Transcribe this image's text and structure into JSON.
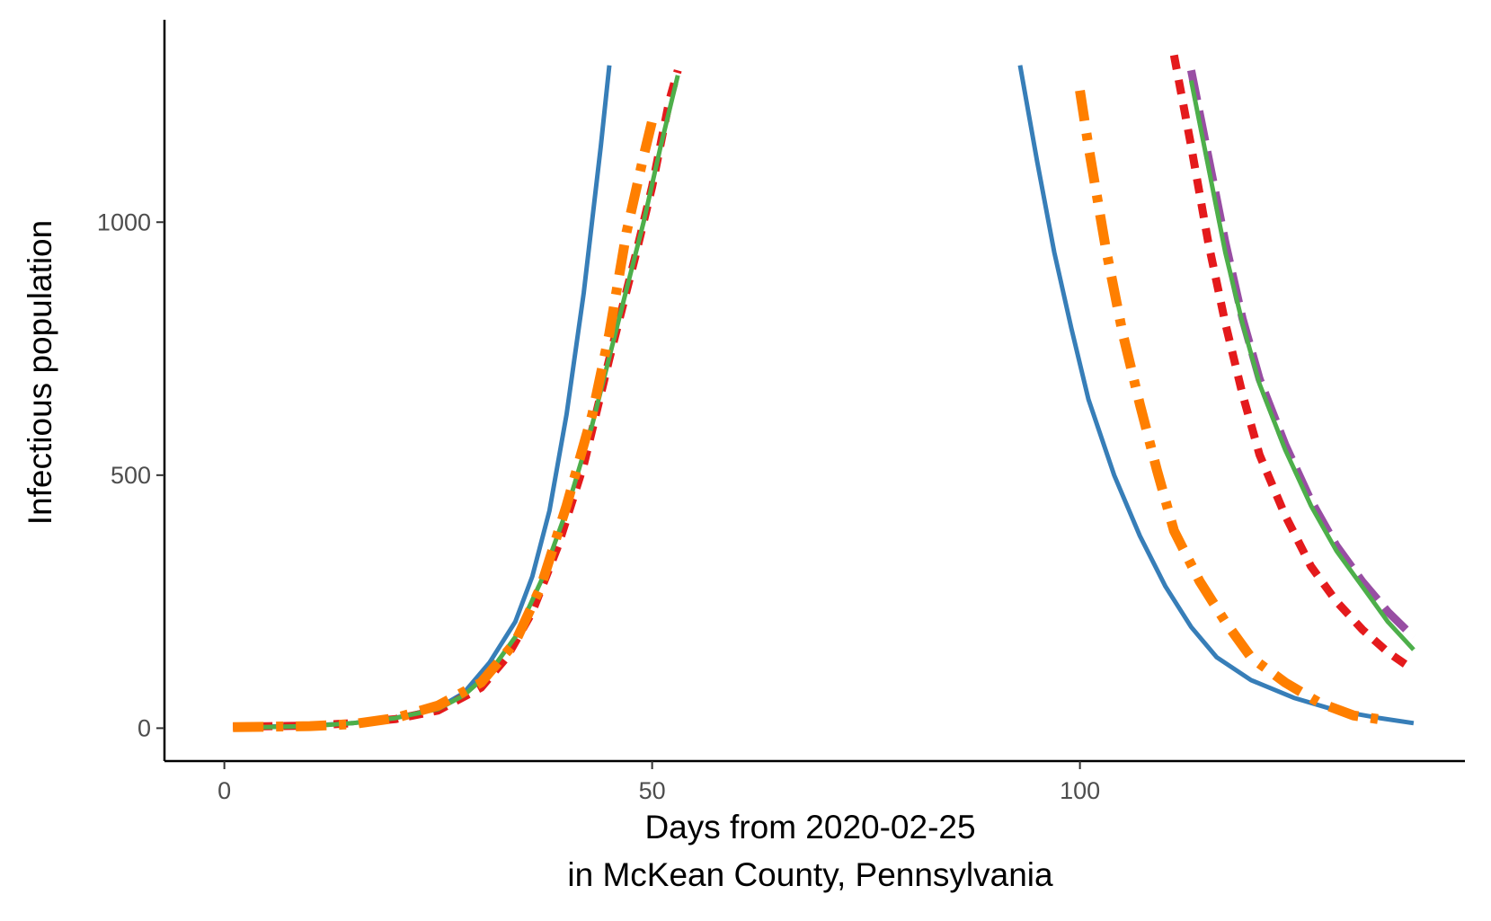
{
  "chart_data": {
    "type": "line",
    "xlabel_line1": "Days from 2020-02-25",
    "xlabel_line2": "in McKean County, Pennsylvania",
    "ylabel": "Infectious population",
    "xlim": [
      -7,
      145
    ],
    "ylim": [
      -65,
      1400
    ],
    "x_ticks": [
      0,
      50,
      100
    ],
    "y_ticks": [
      0,
      500,
      1000
    ],
    "grid": false,
    "legend": "none",
    "series": [
      {
        "color": "#377EB8",
        "dash": "solid",
        "segments": [
          [
            [
              2,
              2
            ],
            [
              10,
              5
            ],
            [
              15,
              10
            ],
            [
              20,
              20
            ],
            [
              25,
              40
            ],
            [
              28,
              70
            ],
            [
              31,
              130
            ],
            [
              34,
              210
            ],
            [
              36,
              300
            ],
            [
              38,
              430
            ],
            [
              40,
              620
            ],
            [
              42,
              860
            ],
            [
              44,
              1150
            ],
            [
              45,
              1310
            ]
          ],
          [
            [
              93,
              1310
            ],
            [
              95,
              1120
            ],
            [
              97,
              940
            ],
            [
              99,
              790
            ],
            [
              101,
              650
            ],
            [
              104,
              500
            ],
            [
              107,
              380
            ],
            [
              110,
              280
            ],
            [
              113,
              200
            ],
            [
              116,
              140
            ],
            [
              120,
              95
            ],
            [
              125,
              60
            ],
            [
              130,
              35
            ],
            [
              135,
              20
            ],
            [
              139,
              10
            ]
          ]
        ]
      },
      {
        "color": "#E41A1C",
        "dash": "dashed",
        "segments": [
          [
            [
              1,
              3
            ],
            [
              10,
              5
            ],
            [
              15,
              10
            ],
            [
              20,
              18
            ],
            [
              25,
              35
            ],
            [
              30,
              80
            ],
            [
              33,
              140
            ],
            [
              36,
              230
            ],
            [
              39,
              360
            ],
            [
              42,
              520
            ],
            [
              45,
              730
            ],
            [
              48,
              930
            ],
            [
              50,
              1070
            ],
            [
              52,
              1240
            ],
            [
              53,
              1300
            ]
          ],
          [
            [
              111,
              1330
            ],
            [
              113,
              1150
            ],
            [
              115,
              960
            ],
            [
              117,
              800
            ],
            [
              119,
              660
            ],
            [
              121,
              540
            ],
            [
              124,
              420
            ],
            [
              127,
              320
            ],
            [
              130,
              250
            ],
            [
              133,
              195
            ],
            [
              136,
              150
            ],
            [
              139,
              115
            ]
          ]
        ]
      },
      {
        "color": "#984EA3",
        "dash": "long-dash",
        "segments": [
          [
            [
              113,
              1300
            ],
            [
              115,
              1130
            ],
            [
              117,
              960
            ],
            [
              119,
              810
            ],
            [
              121,
              690
            ],
            [
              124,
              560
            ],
            [
              127,
              450
            ],
            [
              130,
              360
            ],
            [
              133,
              290
            ],
            [
              136,
              230
            ],
            [
              139,
              180
            ]
          ]
        ]
      },
      {
        "color": "#4DAF4A",
        "dash": "solid",
        "segments": [
          [
            [
              2,
              1
            ],
            [
              10,
              4
            ],
            [
              15,
              10
            ],
            [
              20,
              20
            ],
            [
              25,
              38
            ],
            [
              28,
              65
            ],
            [
              31,
              110
            ],
            [
              34,
              180
            ],
            [
              37,
              290
            ],
            [
              40,
              430
            ],
            [
              43,
              600
            ],
            [
              46,
              800
            ],
            [
              49,
              1000
            ],
            [
              51,
              1150
            ],
            [
              53,
              1290
            ]
          ],
          [
            [
              113,
              1280
            ],
            [
              115,
              1110
            ],
            [
              117,
              940
            ],
            [
              119,
              800
            ],
            [
              121,
              680
            ],
            [
              124,
              550
            ],
            [
              127,
              440
            ],
            [
              130,
              350
            ],
            [
              133,
              280
            ],
            [
              136,
              210
            ],
            [
              139,
              155
            ]
          ]
        ]
      },
      {
        "color": "#FF7F00",
        "dash": "dash-dot",
        "segments": [
          [
            [
              1,
              2
            ],
            [
              10,
              4
            ],
            [
              15,
              8
            ],
            [
              20,
              20
            ],
            [
              25,
              45
            ],
            [
              30,
              90
            ],
            [
              34,
              170
            ],
            [
              37,
              280
            ],
            [
              40,
              440
            ],
            [
              43,
              620
            ],
            [
              45,
              780
            ],
            [
              47,
              980
            ],
            [
              49,
              1130
            ],
            [
              50,
              1200
            ]
          ],
          [
            [
              100,
              1260
            ],
            [
              101,
              1150
            ],
            [
              103,
              950
            ],
            [
              105,
              780
            ],
            [
              107,
              640
            ],
            [
              109,
              510
            ],
            [
              111,
              390
            ],
            [
              114,
              290
            ],
            [
              117,
              210
            ],
            [
              120,
              140
            ],
            [
              124,
              90
            ],
            [
              128,
              50
            ],
            [
              132,
              25
            ],
            [
              136,
              15
            ]
          ]
        ]
      }
    ]
  }
}
